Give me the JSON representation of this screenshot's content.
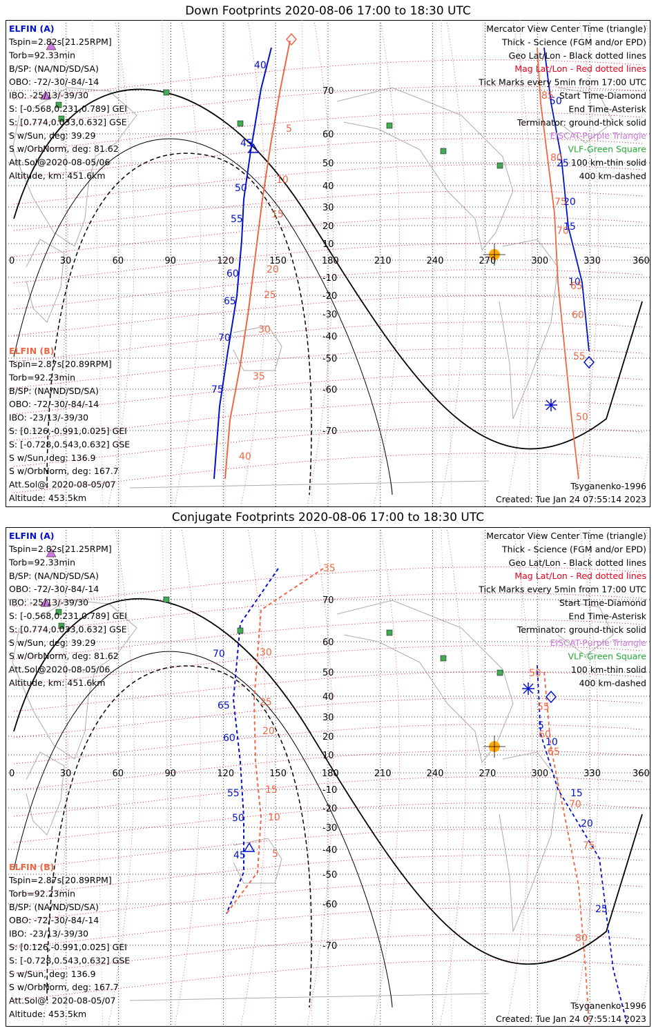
{
  "panels": [
    {
      "title": "Down Footprints 2020-08-06 17:00 to 18:30 UTC",
      "tracks": {
        "a_ticks": [
          "40",
          "45",
          "50",
          "55",
          "60",
          "65",
          "70",
          "75",
          "50",
          "25",
          "20",
          "15",
          "10"
        ],
        "b_ticks": [
          "5",
          "10",
          "15",
          "20",
          "25",
          "30",
          "35",
          "40",
          "85",
          "80",
          "75",
          "70",
          "65",
          "60",
          "55",
          "50"
        ]
      }
    },
    {
      "title": "Conjugate Footprints 2020-08-06 17:00 to 18:30 UTC",
      "tracks": {
        "a_ticks": [
          "70",
          "65",
          "60",
          "55",
          "50",
          "45",
          "5",
          "10",
          "15",
          "20",
          "25"
        ],
        "b_ticks": [
          "35",
          "30",
          "25",
          "20",
          "15",
          "10",
          "5",
          "50",
          "55",
          "60",
          "65",
          "70",
          "75",
          "80"
        ]
      }
    }
  ],
  "elfin_a": {
    "header": "ELFIN (A)",
    "lines": [
      "Tspin=2.82s[21.25RPM]",
      "Torb=92.33min",
      "B/SP: (NA/ND/SD/SA)",
      "OBO: -72/-30/-84/-14",
      "IBO: -25/13/-39/30",
      "S: [-0.568,0.231,0.789] GEI",
      "S: [0.774,0.033,0.632] GSE",
      "S w/Sun, deg: 39.29",
      "S w/OrbNorm, deg: 81.62",
      "Att.Sol@2020-08-05/06",
      "Altitude, km: 451.6km"
    ]
  },
  "elfin_b": {
    "header": "ELFIN (B)",
    "lines": [
      "Tspin=2.87s[20.89RPM]",
      "Torb=92.23min",
      "B/SP: (NA/ND/SD/SA)",
      "OBO: -72/-30/-84/-14",
      "IBO: -23/13/-39/30",
      "S: [0.126,-0.991,0.025] GEI",
      "S: [-0.728,0.543,0.632] GSE",
      "S w/Sun, deg: 136.9",
      "S w/OrbNorm, deg: 167.7",
      "Att.Sol@: 2020-08-05/07",
      "Altitude: 453.5km"
    ]
  },
  "legend": [
    {
      "text": "Mercator View Center Time (triangle)",
      "color": "#000000"
    },
    {
      "text": "Thick - Science (FGM and/or EPD)",
      "color": "#000000"
    },
    {
      "text": "Geo Lat/Lon - Black dotted lines",
      "color": "#000000"
    },
    {
      "text": "Mag Lat/Lon - Red dotted lines",
      "color": "#e8001a"
    },
    {
      "text": "Tick Marks every 5min from 17:00 UTC",
      "color": "#000000"
    },
    {
      "text": "Start Time-Diamond",
      "color": "#000000"
    },
    {
      "text": "End Time-Asterisk",
      "color": "#000000"
    },
    {
      "text": "Terminator: ground-thick solid",
      "color": "#000000"
    },
    {
      "text": "EISCAT-Purple Triangle",
      "color": "#cc77dd"
    },
    {
      "text": "VLF-Green Square",
      "color": "#22aa33"
    },
    {
      "text": "100 km-thin solid",
      "color": "#000000"
    },
    {
      "text": "400 km-dashed",
      "color": "#000000"
    }
  ],
  "model": "Tsyganenko-1996",
  "created": "Created: Tue Jan 24 07:55:14 2023",
  "lon_labels": [
    "0",
    "30",
    "60",
    "90",
    "120",
    "150",
    "180",
    "210",
    "240",
    "270",
    "300",
    "330",
    "360"
  ],
  "lat_labels": [
    "70",
    "60",
    "50",
    "40",
    "30",
    "20",
    "10",
    "-10",
    "-20",
    "-30",
    "-40",
    "-50",
    "-60",
    "-70"
  ],
  "colors": {
    "elfin_a": "#0010cc",
    "elfin_b": "#ee6644",
    "mag_grid": "#e8001a",
    "geo_grid": "#000000",
    "eiscat": "#cc77dd",
    "vlf": "#44aa55",
    "sun": "#ffaa00",
    "coast": "#aaaaaa"
  }
}
